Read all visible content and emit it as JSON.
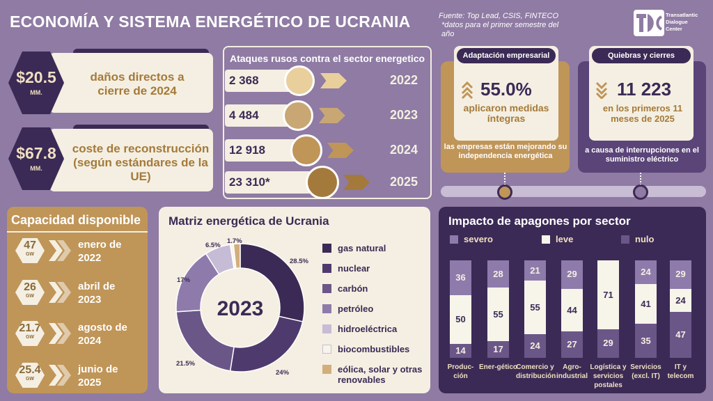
{
  "header": {
    "title": "ECONOMÍA Y SISTEMA ENERGÉTICO DE UCRANIA",
    "source": "Fuente: Top Lead, CSIS, FINTECO",
    "note": "*datos para el primer semestre del año",
    "logo_text": [
      "Transatlantic",
      "Dialogue",
      "Center"
    ]
  },
  "stats": [
    {
      "value": "$20.5",
      "unit": "MM.",
      "label": "daños directos a cierre de 2024"
    },
    {
      "value": "$67.8",
      "unit": "MM.",
      "label": "coste de reconstrucción (según estándares de la UE)"
    }
  ],
  "attacks": {
    "title": "Ataques rusos contra el sector energetico",
    "rows": [
      {
        "value": "2 368",
        "year": "2022",
        "color": "#e9cf9c"
      },
      {
        "value": "4 484",
        "year": "2023",
        "color": "#c8a774"
      },
      {
        "value": "12 918",
        "year": "2024",
        "color": "#c09558"
      },
      {
        "value": "23 310*",
        "year": "2025",
        "color": "#a47a3c"
      }
    ]
  },
  "adaptation": {
    "tag": "Adaptación empresarial",
    "value": "55.0%",
    "sub": "aplicaron medidas íntegras",
    "foot": "las empresas están mejorando su independencia energética"
  },
  "bankrupt": {
    "tag": "Quiebras y cierres",
    "value": "11 223",
    "sub": "en los primeros 11 meses de 2025",
    "foot": "a causa de interrupciones en el suministro eléctrico"
  },
  "capacity": {
    "title": "Capacidad disponible",
    "unit": "GW",
    "items": [
      {
        "value": "47",
        "date": "enero de 2022"
      },
      {
        "value": "26",
        "date": "abril de 2023"
      },
      {
        "value": "21.7",
        "date": "agosto de 2024"
      },
      {
        "value": "25.4",
        "date": "junio de 2025"
      }
    ]
  },
  "chart_data": [
    {
      "type": "pie",
      "title": "Matriz energética de Ucrania",
      "center_label": "2023",
      "slices": [
        {
          "name": "gas natural",
          "value": 28.5,
          "label": "28.5%",
          "color": "#3b2a55"
        },
        {
          "name": "nuclear",
          "value": 24,
          "label": "24%",
          "color": "#4f3a6e"
        },
        {
          "name": "carbón",
          "value": 21.5,
          "label": "21.5%",
          "color": "#6b5688"
        },
        {
          "name": "petróleo",
          "value": 17,
          "label": "17%",
          "color": "#8e7bab"
        },
        {
          "name": "hidroeléctrica",
          "value": 6.5,
          "label": "6.5%",
          "color": "#c6bcd6"
        },
        {
          "name": "biocombustibles",
          "value": 0.8,
          "label": "",
          "color": "#f7f4ea"
        },
        {
          "name": "eólica, solar y otras renovables",
          "value": 1.7,
          "label": "1.7%",
          "color": "#d2ae7c"
        }
      ]
    },
    {
      "type": "bar",
      "title": "Impacto de apagones por sector",
      "stacked": true,
      "categories": [
        "Produc-ción",
        "Ener-gético",
        "Comercio y distribución",
        "Agro-industrial",
        "Logística y servicios postales",
        "Servicios (excl. IT)",
        "IT y telecom"
      ],
      "series": [
        {
          "name": "severo",
          "color": "#8e7bab",
          "values": [
            36,
            28,
            21,
            29,
            null,
            24,
            29
          ]
        },
        {
          "name": "leve",
          "color": "#f7f4ea",
          "values": [
            50,
            55,
            55,
            44,
            71,
            41,
            24
          ]
        },
        {
          "name": "nulo",
          "color": "#6b5688",
          "values": [
            14,
            17,
            24,
            27,
            29,
            35,
            47
          ]
        }
      ],
      "legend": [
        "severo",
        "leve",
        "nulo"
      ]
    }
  ]
}
